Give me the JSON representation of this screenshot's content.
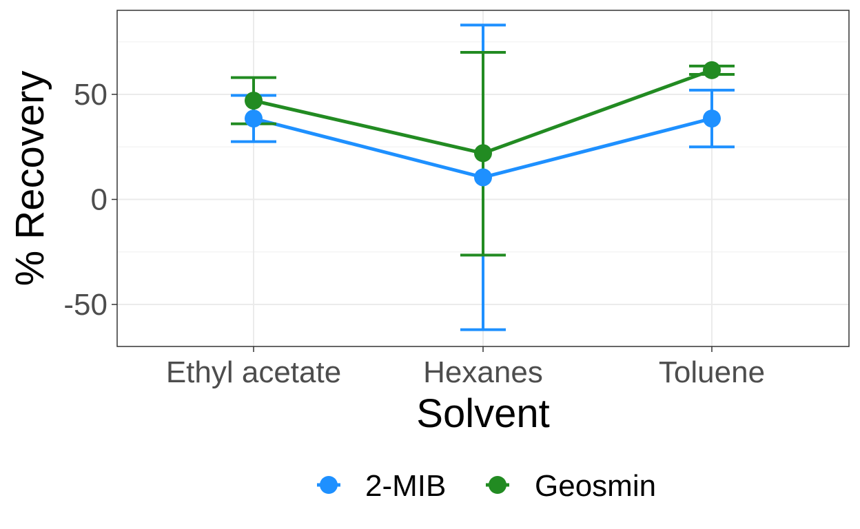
{
  "chart_data": {
    "type": "line",
    "xlabel": "Solvent",
    "ylabel": "% Recovery",
    "categories": [
      "Ethyl acetate",
      "Hexanes",
      "Toluene"
    ],
    "ylim": [
      -70,
      90
    ],
    "y_ticks": [
      -50,
      0,
      50
    ],
    "grid": true,
    "legend_position": "bottom",
    "series": [
      {
        "name": "2-MIB",
        "color": "#1e90ff",
        "values": [
          38.5,
          10.5,
          38.5
        ],
        "error_low": [
          27.5,
          -62,
          25
        ],
        "error_high": [
          49.5,
          83,
          52
        ]
      },
      {
        "name": "Geosmin",
        "color": "#228b22",
        "values": [
          47,
          22,
          61.5
        ],
        "error_low": [
          36,
          -26.5,
          59.5
        ],
        "error_high": [
          58,
          70,
          63.5
        ]
      }
    ]
  }
}
